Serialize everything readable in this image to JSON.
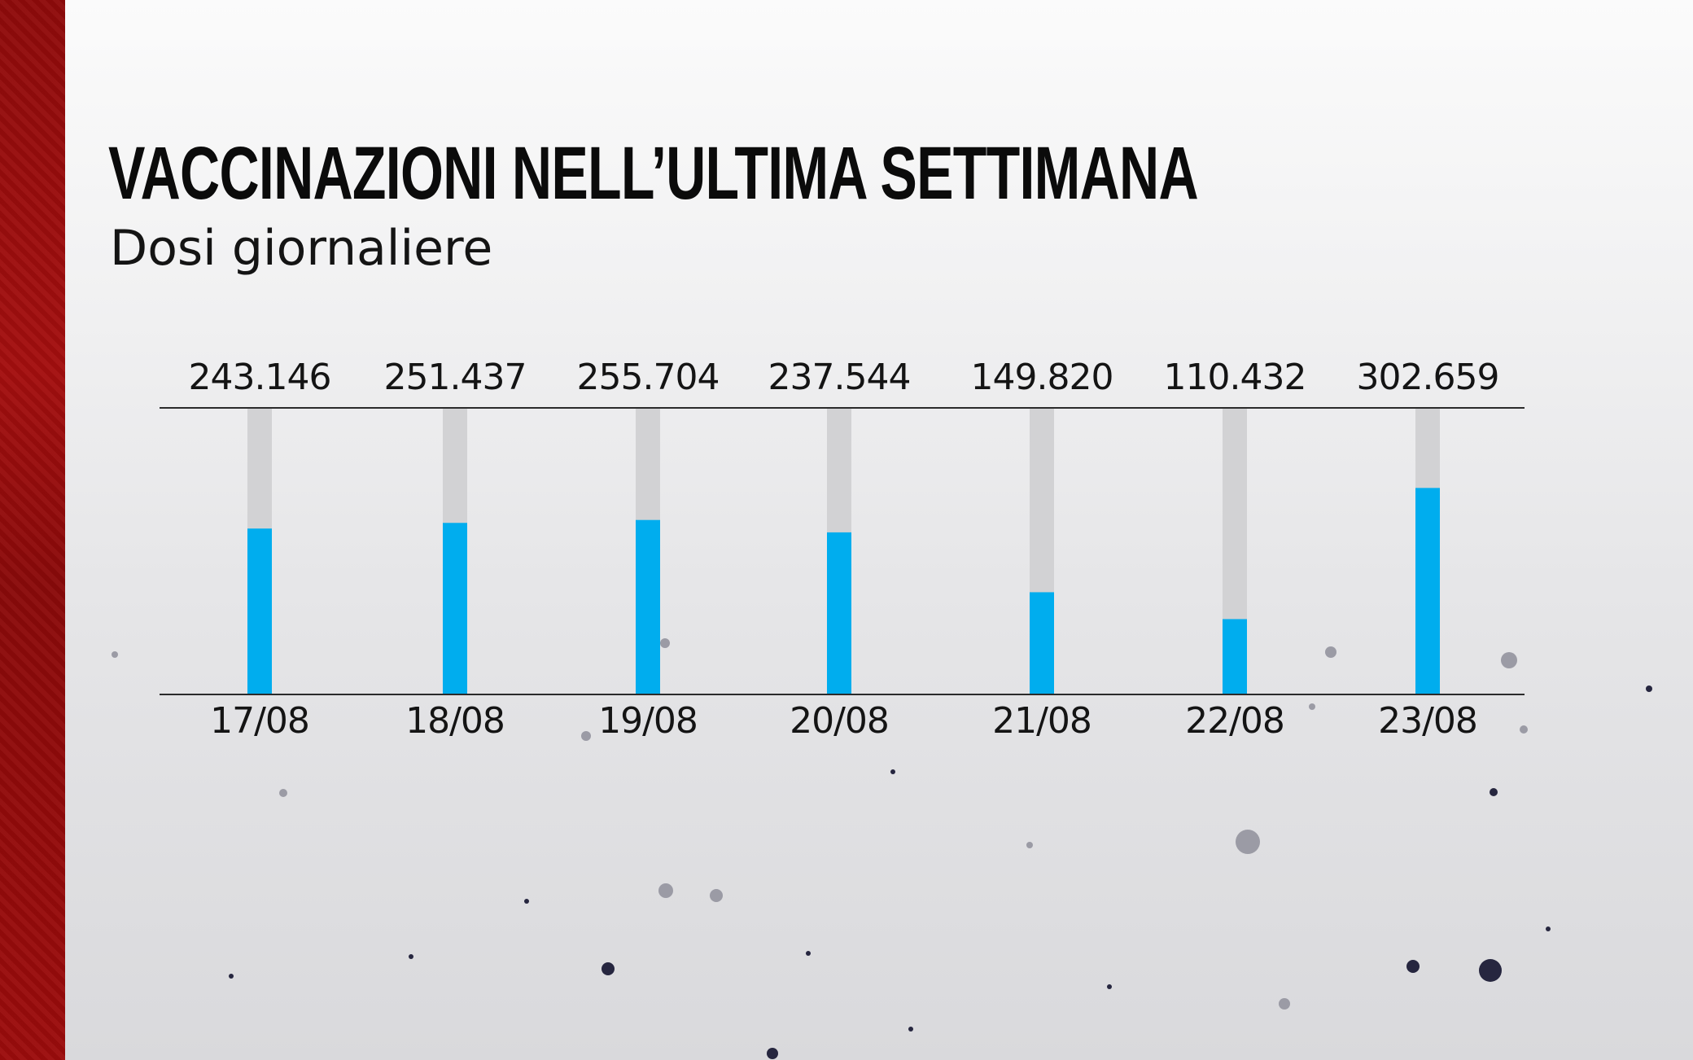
{
  "header": {
    "title": "VACCINAZIONI NELL’ULTIMA SETTIMANA",
    "subtitle": "Dosi giornaliere"
  },
  "colors": {
    "bar_fill": "#00adee",
    "bar_track": "#d2d2d4",
    "axis_line": "#2b2b2b",
    "side_stripe": "#9a0d0d",
    "text": "#141414"
  },
  "chart_data": {
    "type": "bar",
    "categories": [
      "17/08",
      "18/08",
      "19/08",
      "20/08",
      "21/08",
      "22/08",
      "23/08"
    ],
    "values": [
      243146,
      251437,
      255704,
      237544,
      149820,
      110432,
      302659
    ],
    "value_labels": [
      "243.146",
      "251.437",
      "255.704",
      "237.544",
      "149.820",
      "110.432",
      "302.659"
    ],
    "title": "VACCINAZIONI NELL’ULTIMA SETTIMANA",
    "subtitle": "Dosi giornaliere",
    "ylim": [
      0,
      420000
    ],
    "grid": false
  }
}
